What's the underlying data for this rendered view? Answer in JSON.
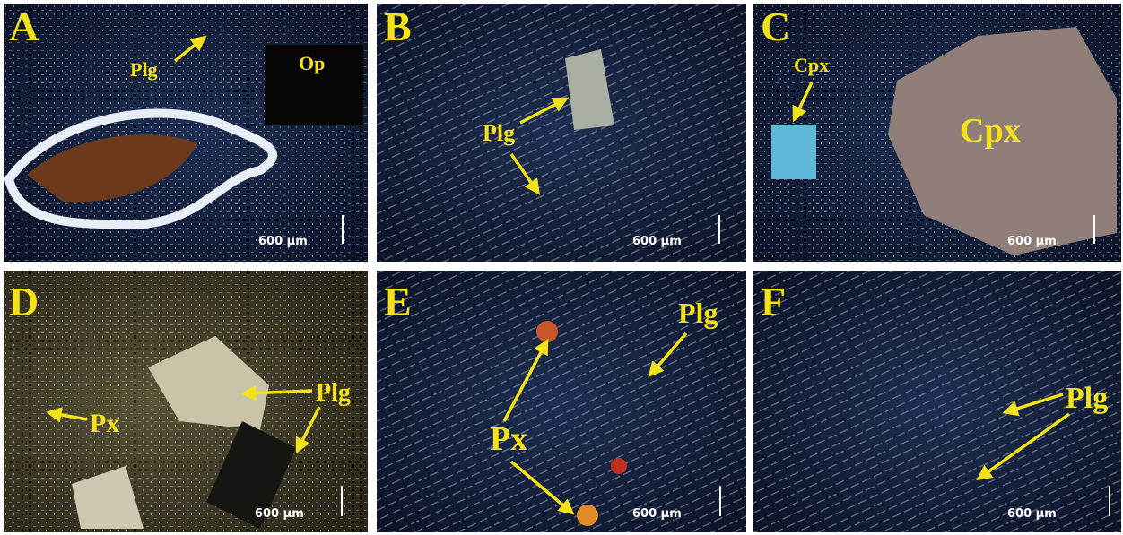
{
  "panels": [
    {
      "letter": "A",
      "labels": [
        "Plg",
        "Op"
      ],
      "scale": "600 μm"
    },
    {
      "letter": "B",
      "labels": [
        "Plg"
      ],
      "scale": "600 μm"
    },
    {
      "letter": "C",
      "labels": [
        "Cpx",
        "Cpx"
      ],
      "scale": "600 μm"
    },
    {
      "letter": "D",
      "labels": [
        "Plg",
        "Px"
      ],
      "scale": "600 μm"
    },
    {
      "letter": "E",
      "labels": [
        "Plg",
        "Px"
      ],
      "scale": "600 μm"
    },
    {
      "letter": "F",
      "labels": [
        "Plg"
      ],
      "scale": "600 μm"
    }
  ]
}
